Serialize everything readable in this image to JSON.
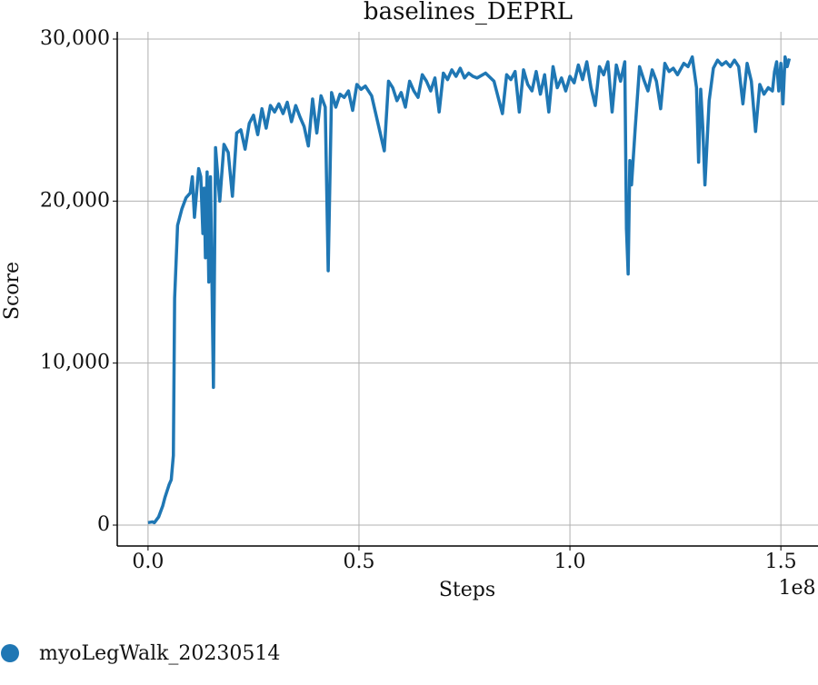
{
  "chart_data": {
    "type": "line",
    "title": "baselines_DEPRL",
    "x_label": "Steps",
    "y_label": "Score",
    "x_offset_label": "1e8",
    "xlim": [
      -7300000,
      158800000
    ],
    "ylim": [
      -1290,
      30450
    ],
    "xticks": [
      {
        "value": 0,
        "label": "0.0"
      },
      {
        "value": 50000000,
        "label": "0.5"
      },
      {
        "value": 100000000,
        "label": "1.0"
      },
      {
        "value": 150000000,
        "label": "1.5"
      }
    ],
    "yticks": [
      0,
      {
        "value": 10000,
        "label": "10,000"
      },
      {
        "value": 20000,
        "label": "20,000"
      },
      {
        "value": 30000,
        "label": "30,000"
      }
    ],
    "grid": true,
    "legend": "bottom-left",
    "series": [
      {
        "name": "myoLegWalk_20230514",
        "color": "#1f77b4",
        "x": [
          0,
          1000000,
          1500000,
          2500000,
          3500000,
          4000000,
          5000000,
          5500000,
          6000000,
          6300000,
          7000000,
          7500000,
          8000000,
          9000000,
          10000000,
          10500000,
          11000000,
          12000000,
          12500000,
          13000000,
          13300000,
          13600000,
          14000000,
          14400000,
          14800000,
          15500000,
          16000000,
          17000000,
          18000000,
          19000000,
          20000000,
          21000000,
          22000000,
          23000000,
          24000000,
          25000000,
          26000000,
          27000000,
          28000000,
          29000000,
          30000000,
          31000000,
          32000000,
          33000000,
          34000000,
          35000000,
          36000000,
          37000000,
          38000000,
          39000000,
          40000000,
          41000000,
          42000000,
          42700000,
          43500000,
          44500000,
          45500000,
          46500000,
          47500000,
          48500000,
          49500000,
          50500000,
          51500000,
          53000000,
          56000000,
          57000000,
          58000000,
          59000000,
          60000000,
          61000000,
          62000000,
          63000000,
          64000000,
          65000000,
          66000000,
          67000000,
          68000000,
          69000000,
          70000000,
          71000000,
          72000000,
          73000000,
          74000000,
          75000000,
          76000000,
          77000000,
          78000000,
          80000000,
          82000000,
          84000000,
          85000000,
          86000000,
          87000000,
          88000000,
          89000000,
          90000000,
          91000000,
          92000000,
          93000000,
          94000000,
          95000000,
          96000000,
          97000000,
          98000000,
          99000000,
          100000000,
          101000000,
          102000000,
          103000000,
          104000000,
          105000000,
          106000000,
          107000000,
          108000000,
          109000000,
          110000000,
          111000000,
          112000000,
          113000000,
          113400000,
          113800000,
          114200000,
          114600000,
          115500000,
          116500000,
          117500000,
          118500000,
          119500000,
          120500000,
          121500000,
          122500000,
          123500000,
          124500000,
          125500000,
          127000000,
          128000000,
          129000000,
          130000000,
          130500000,
          131000000,
          131500000,
          132000000,
          133000000,
          134000000,
          135000000,
          136000000,
          137000000,
          138000000,
          139000000,
          140000000,
          141000000,
          142000000,
          143000000,
          144000000,
          145000000,
          146000000,
          147000000,
          148000000,
          148500000,
          149000000,
          149500000,
          150000000,
          150500000,
          151000000,
          151500000,
          152000000
        ],
        "values": [
          150,
          200,
          150,
          500,
          1200,
          1700,
          2500,
          2800,
          4300,
          14000,
          18500,
          19000,
          19500,
          20200,
          20500,
          21500,
          19000,
          22000,
          21500,
          18000,
          20800,
          16500,
          21800,
          15000,
          21500,
          8500,
          23300,
          20000,
          23500,
          23000,
          20300,
          24200,
          24400,
          23200,
          24800,
          25300,
          24100,
          25700,
          24500,
          25900,
          25500,
          26000,
          25400,
          26100,
          24900,
          25900,
          25200,
          24600,
          23400,
          26300,
          24200,
          26500,
          25800,
          15700,
          26700,
          25800,
          26600,
          26400,
          26800,
          25600,
          27200,
          26900,
          27100,
          26500,
          23100,
          27400,
          27000,
          26200,
          26700,
          25800,
          27400,
          26800,
          26400,
          27800,
          27400,
          26800,
          27600,
          25500,
          27900,
          27500,
          28100,
          27700,
          28200,
          27600,
          27900,
          27700,
          27600,
          27900,
          27400,
          25400,
          27800,
          27500,
          28000,
          25500,
          28100,
          27200,
          26800,
          28000,
          26600,
          27800,
          25500,
          28300,
          27000,
          27600,
          26800,
          27700,
          27300,
          28400,
          27500,
          28600,
          27000,
          25900,
          28300,
          27800,
          28600,
          25500,
          28400,
          27400,
          28600,
          18300,
          15500,
          22500,
          21000,
          24600,
          28300,
          27500,
          26800,
          28100,
          27400,
          25700,
          28500,
          28000,
          28200,
          27800,
          28500,
          28300,
          28900,
          27000,
          22400,
          26900,
          24500,
          21000,
          26200,
          28200,
          28700,
          28400,
          28600,
          28300,
          28700,
          28300,
          26000,
          28500,
          27400,
          24300,
          27200,
          26600,
          27000,
          26800,
          28000,
          28600,
          26800,
          28500,
          26000,
          28900,
          28300,
          28800
        ]
      }
    ]
  }
}
